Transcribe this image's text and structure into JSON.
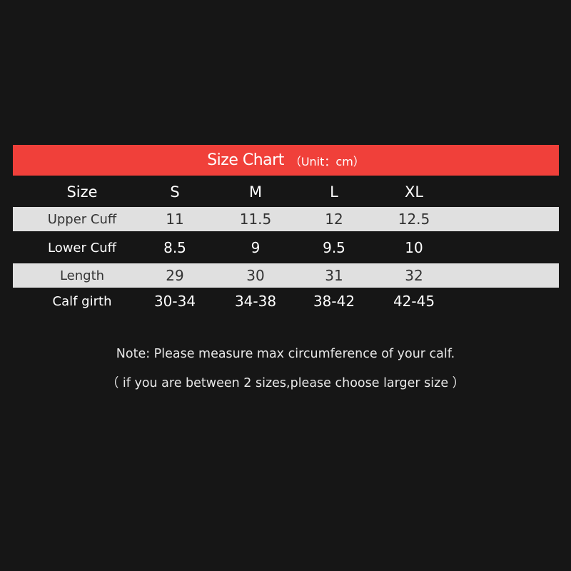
{
  "title": {
    "main": "Size Chart",
    "unit": "（Unit：cm）"
  },
  "colors": {
    "header_bg": "#f0403a",
    "background": "#161616",
    "stripe": "#e0e0e0"
  },
  "table": {
    "header": [
      "Size",
      "S",
      "M",
      "L",
      "XL"
    ],
    "rows": [
      [
        "Upper Cuff",
        "11",
        "11.5",
        "12",
        "12.5"
      ],
      [
        "Lower Cuff",
        "8.5",
        "9",
        "9.5",
        "10"
      ],
      [
        "Length",
        "29",
        "30",
        "31",
        "32"
      ],
      [
        "Calf girth",
        "30-34",
        "34-38",
        "38-42",
        "42-45"
      ]
    ]
  },
  "notes": [
    "Note: Please measure max circumference of your calf.",
    "（ if you are between 2 sizes,please choose larger size ）"
  ]
}
